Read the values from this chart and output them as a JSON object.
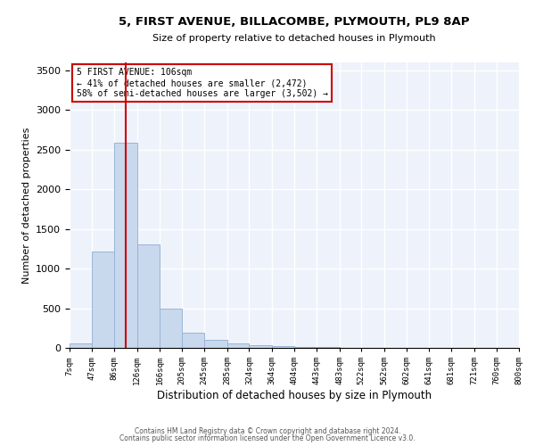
{
  "title": "5, FIRST AVENUE, BILLACOMBE, PLYMOUTH, PL9 8AP",
  "subtitle": "Size of property relative to detached houses in Plymouth",
  "xlabel": "Distribution of detached houses by size in Plymouth",
  "ylabel": "Number of detached properties",
  "bar_color": "#c8d8ed",
  "bar_edge_color": "#9ab5d5",
  "background_color": "#eef2fb",
  "grid_color": "#ffffff",
  "annotation_box_color": "#cc0000",
  "vline_color": "#cc0000",
  "vline_x": 106,
  "annotation_title": "5 FIRST AVENUE: 106sqm",
  "annotation_line1": "← 41% of detached houses are smaller (2,472)",
  "annotation_line2": "58% of semi-detached houses are larger (3,502) →",
  "footer_line1": "Contains HM Land Registry data © Crown copyright and database right 2024.",
  "footer_line2": "Contains public sector information licensed under the Open Government Licence v3.0.",
  "bins": [
    7,
    47,
    86,
    126,
    166,
    205,
    245,
    285,
    324,
    364,
    404,
    443,
    483,
    522,
    562,
    602,
    641,
    681,
    721,
    760,
    800
  ],
  "counts": [
    60,
    1220,
    2590,
    1310,
    490,
    195,
    105,
    55,
    30,
    20,
    15,
    10,
    5,
    3,
    2,
    2,
    1,
    1,
    1,
    1
  ],
  "ylim": [
    0,
    3600
  ],
  "yticks": [
    0,
    500,
    1000,
    1500,
    2000,
    2500,
    3000,
    3500
  ]
}
